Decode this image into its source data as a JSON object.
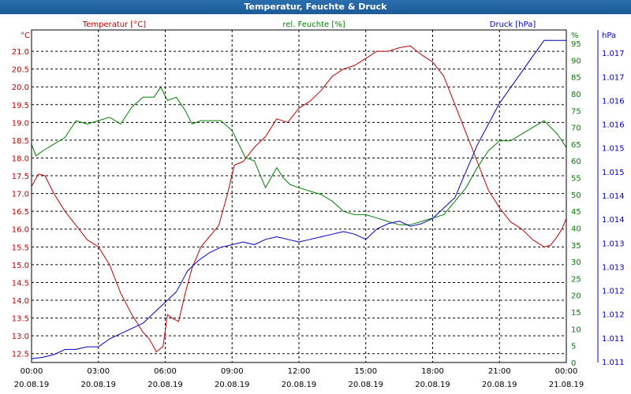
{
  "window": {
    "title": "Temperatur, Feuchte & Druck"
  },
  "chart_data": {
    "type": "line",
    "title": "Temperatur, Feuchte & Druck",
    "x_ticks": [
      {
        "time": "00:00",
        "date": "20.08.19"
      },
      {
        "time": "03:00",
        "date": "20.08.19"
      },
      {
        "time": "06:00",
        "date": "20.08.19"
      },
      {
        "time": "09:00",
        "date": "20.08.19"
      },
      {
        "time": "12:00",
        "date": "20.08.19"
      },
      {
        "time": "15:00",
        "date": "20.08.19"
      },
      {
        "time": "18:00",
        "date": "20.08.19"
      },
      {
        "time": "21:00",
        "date": "20.08.19"
      },
      {
        "time": "00:00",
        "date": "21.08.19"
      }
    ],
    "xlim_hours": [
      0,
      24
    ],
    "axes": {
      "temperature": {
        "unit": "°C",
        "ylim": [
          12.25,
          21.6
        ],
        "ticks": [
          "12.5",
          "13.0",
          "13.5",
          "14.0",
          "14.5",
          "15.0",
          "15.5",
          "16.0",
          "16.5",
          "17.0",
          "17.5",
          "18.0",
          "18.5",
          "19.0",
          "19.5",
          "20.0",
          "20.5",
          "21.0"
        ]
      },
      "humidity": {
        "unit": "%",
        "ylim": [
          0,
          99
        ],
        "ticks": [
          "0",
          "5",
          "10",
          "15",
          "20",
          "25",
          "30",
          "35",
          "40",
          "45",
          "50",
          "55",
          "60",
          "65",
          "70",
          "75",
          "80",
          "85",
          "90",
          "95"
        ]
      },
      "pressure": {
        "unit": "hPa",
        "ylim": [
          1010.85,
          1017.2
        ],
        "ticks": [
          "1.011",
          "1.011",
          "1.012",
          "1.012",
          "1.013",
          "1.013",
          "1.014",
          "1.014",
          "1.015",
          "1.015",
          "1.016",
          "1.016",
          "1.017",
          "1.017"
        ]
      }
    },
    "series": [
      {
        "name": "Temperatur [°C]",
        "axis": "temperature",
        "color": "#c00000",
        "x": [
          0,
          0.3,
          0.6,
          1,
          1.5,
          2,
          2.5,
          3,
          3.5,
          4,
          4.5,
          5,
          5.3,
          5.6,
          5.9,
          6.1,
          6.3,
          6.6,
          6.9,
          7.2,
          7.6,
          8,
          8.4,
          8.8,
          9.1,
          9.5,
          10,
          10.5,
          11,
          11.5,
          12,
          12.5,
          13,
          13.5,
          14,
          14.5,
          15,
          15.5,
          16,
          16.5,
          17,
          17.5,
          18,
          18.5,
          19,
          19.5,
          20,
          20.5,
          21,
          21.5,
          22,
          22.5,
          23,
          23.3,
          23.6,
          23.8,
          24
        ],
        "values": [
          17.2,
          17.55,
          17.5,
          17.0,
          16.5,
          16.1,
          15.7,
          15.5,
          15.0,
          14.2,
          13.6,
          13.1,
          12.9,
          12.55,
          12.7,
          13.6,
          13.5,
          13.4,
          14.2,
          14.9,
          15.5,
          15.8,
          16.1,
          17.0,
          17.8,
          17.9,
          18.3,
          18.6,
          19.1,
          19.0,
          19.4,
          19.6,
          19.9,
          20.3,
          20.5,
          20.6,
          20.8,
          21.0,
          21.0,
          21.1,
          21.15,
          20.9,
          20.7,
          20.3,
          19.5,
          18.7,
          17.9,
          17.1,
          16.6,
          16.2,
          16.0,
          15.7,
          15.5,
          15.55,
          15.8,
          16.0,
          16.3
        ]
      },
      {
        "name": "rel. Feuchte [%]",
        "axis": "humidity",
        "color": "#008000",
        "x": [
          0,
          0.2,
          0.5,
          1,
          1.5,
          2,
          2.5,
          3,
          3.5,
          4,
          4.5,
          5,
          5.5,
          5.8,
          6.1,
          6.5,
          6.9,
          7.2,
          7.6,
          8,
          8.5,
          9,
          9.3,
          9.6,
          10,
          10.5,
          11,
          11.3,
          11.6,
          12,
          12.5,
          13,
          13.5,
          14,
          14.5,
          15,
          15.5,
          16,
          16.5,
          17,
          17.5,
          18,
          18.5,
          19,
          19.5,
          20,
          20.5,
          21,
          21.5,
          22,
          22.5,
          23,
          23.3,
          23.6,
          24
        ],
        "values": [
          65,
          61.5,
          63,
          65,
          67,
          72,
          71,
          72,
          73,
          71,
          76,
          79,
          79,
          82,
          78,
          79,
          75,
          71,
          72,
          72,
          72,
          69,
          65,
          61,
          60,
          52,
          58,
          55,
          53,
          52,
          51,
          50,
          48,
          45,
          44,
          44,
          43,
          42,
          41,
          41,
          42,
          43,
          44,
          48,
          52,
          58,
          63,
          66,
          66,
          68,
          70,
          72,
          70,
          68,
          64
        ]
      },
      {
        "name": "Druck [hPa]",
        "axis": "pressure",
        "color": "#0000c0",
        "x": [
          0,
          0.5,
          1,
          1.5,
          2,
          2.5,
          3,
          3.5,
          4,
          4.5,
          5,
          5.5,
          6,
          6.5,
          7,
          7.5,
          8,
          8.5,
          9,
          9.5,
          10,
          10.5,
          11,
          11.5,
          12,
          12.5,
          13,
          13.5,
          14,
          14.5,
          15,
          15.5,
          16,
          16.5,
          17,
          17.5,
          18,
          18.5,
          19,
          19.5,
          20,
          20.5,
          21,
          21.5,
          22,
          22.5,
          23,
          23.3,
          23.6,
          24
        ],
        "values": [
          1010.92,
          1010.95,
          1011.0,
          1011.1,
          1011.1,
          1011.15,
          1011.15,
          1011.3,
          1011.4,
          1011.5,
          1011.6,
          1011.8,
          1012.0,
          1012.2,
          1012.6,
          1012.8,
          1012.95,
          1013.05,
          1013.1,
          1013.15,
          1013.1,
          1013.2,
          1013.25,
          1013.2,
          1013.15,
          1013.2,
          1013.25,
          1013.3,
          1013.35,
          1013.3,
          1013.2,
          1013.4,
          1013.5,
          1013.55,
          1013.45,
          1013.5,
          1013.6,
          1013.8,
          1014.0,
          1014.5,
          1015.0,
          1015.4,
          1015.8,
          1016.1,
          1016.4,
          1016.7,
          1017.0,
          1017.0,
          1017.0,
          1017.0
        ]
      }
    ],
    "grid": true
  }
}
